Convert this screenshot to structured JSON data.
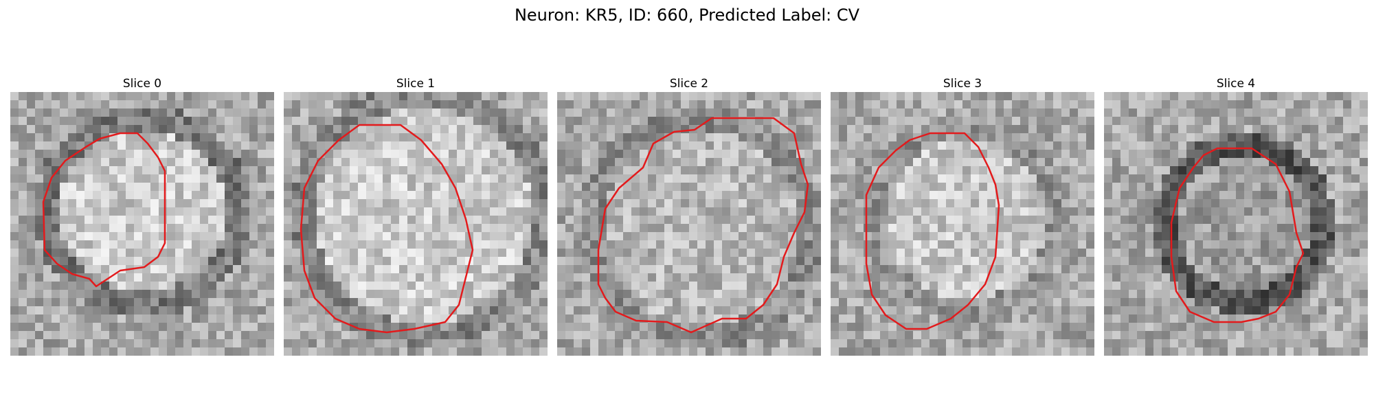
{
  "figure": {
    "title": "Neuron: KR5, ID: 660, Predicted Label: CV"
  },
  "contour_color": "#e31a1c",
  "slices": [
    {
      "title": "Slice 0"
    },
    {
      "title": "Slice 1"
    },
    {
      "title": "Slice 2"
    },
    {
      "title": "Slice 3"
    },
    {
      "title": "Slice 4"
    }
  ]
}
